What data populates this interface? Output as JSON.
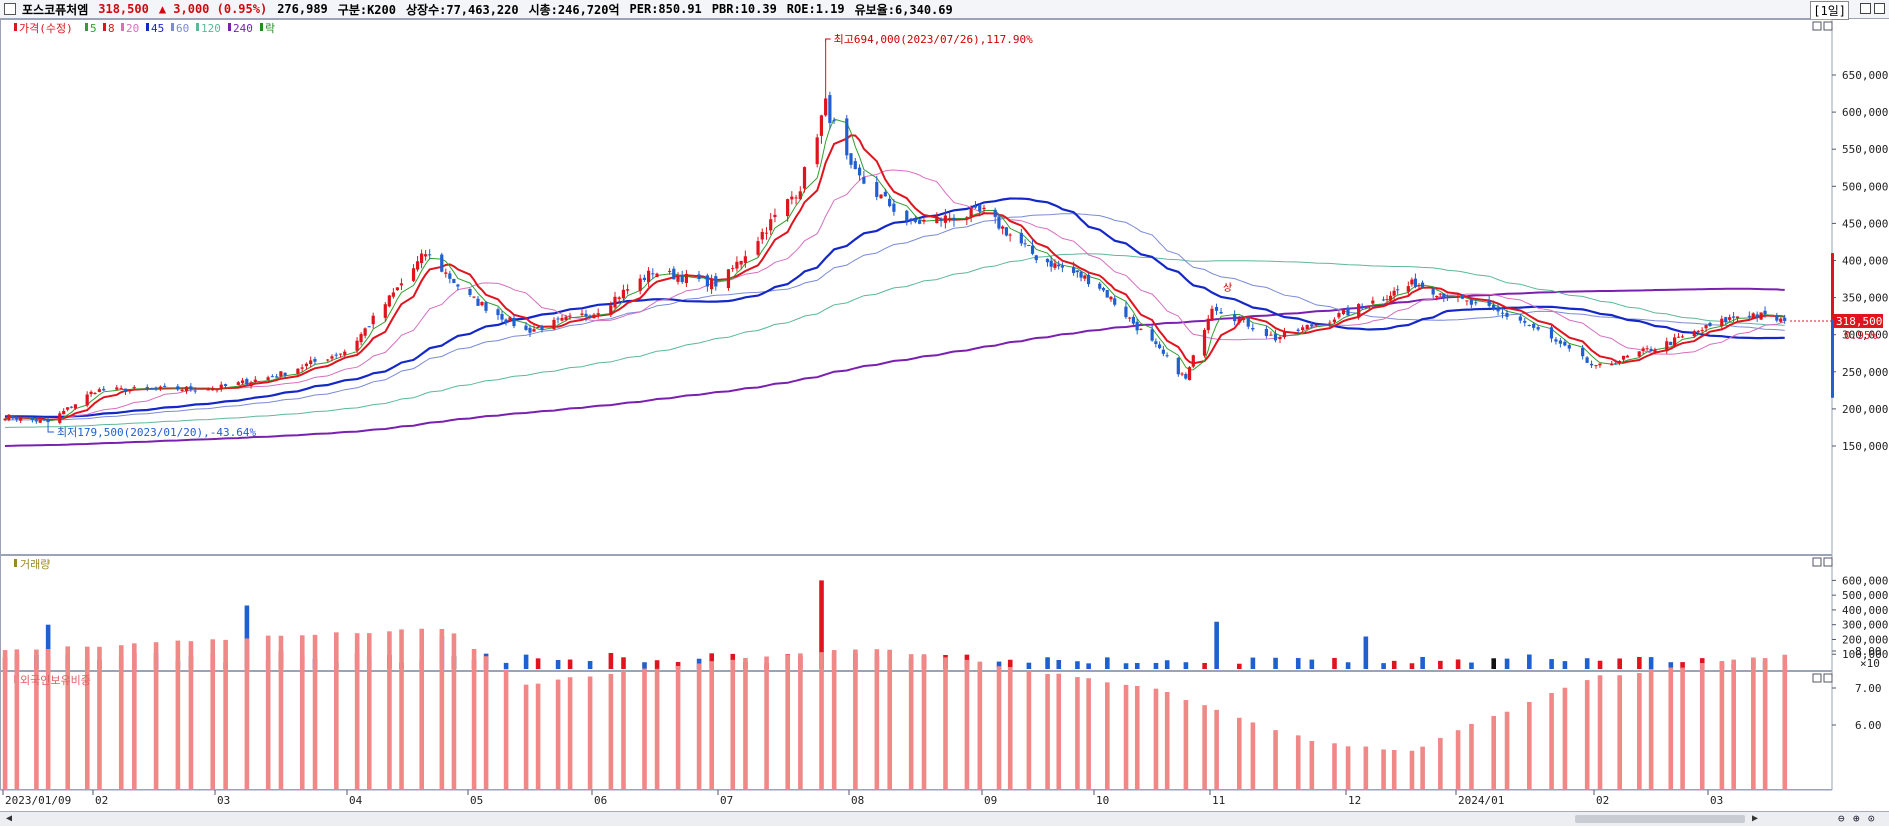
{
  "header": {
    "stock_name": "포스코퓨처엠",
    "price": "318,500",
    "change": "▲ 3,000 (0.95%)",
    "volume": "276,989",
    "market": "구분:K200",
    "shares": "상장수:77,463,220",
    "market_cap": "시총:246,720억",
    "per": "PER:850.91",
    "pbr": "PBR:10.39",
    "roe": "ROE:1.19",
    "float_rate": "유보율:6,340.69",
    "period": "[1일]"
  },
  "colors": {
    "up": "#e0141e",
    "down": "#1f5fcf",
    "ma5": "#2ea02e",
    "ma8": "#e0141e",
    "ma20": "#d76fbf",
    "ma45": "#1428c8",
    "ma60": "#7a8ad8",
    "ma120": "#5bb89a",
    "ma240": "#7a20b0",
    "foreign": "#f08888"
  },
  "price_panel": {
    "legend": [
      "가격(수정)",
      "5",
      "8",
      "20",
      "45",
      "60",
      "120",
      "240",
      "락"
    ],
    "high_annotation": "최고694,000(2023/07/26),117.90%",
    "low_annotation": "최저179,500(2023/01/20),-43.64%",
    "last_price_label": "318,500",
    "last_change_label": "0.95%",
    "y_ticks": [
      "650,000",
      "600,000",
      "550,000",
      "500,000",
      "450,000",
      "400,000",
      "350,000",
      "300,000",
      "250,000",
      "200,000",
      "150,000"
    ],
    "sang_mark": "상"
  },
  "volume_panel": {
    "title": "거래량",
    "y_ticks": [
      "600,000",
      "500,000",
      "400,000",
      "300,000",
      "200,000",
      "100,000"
    ],
    "unit": "×10"
  },
  "foreign_panel": {
    "title": "외국인보유비중",
    "y_ticks": [
      "8.00",
      "7.00",
      "6.00"
    ]
  },
  "x_axis": {
    "labels": [
      "2023/01/09",
      "02",
      "03",
      "04",
      "05",
      "06",
      "07",
      "08",
      "09",
      "10",
      "11",
      "12",
      "2024/01",
      "02",
      "03"
    ]
  },
  "chart_data": {
    "type": "candlestick",
    "title": "포스코퓨처엠",
    "x_label_dates": [
      "2023/01/09",
      "2023/02",
      "2023/03",
      "2023/04",
      "2023/05",
      "2023/06",
      "2023/07",
      "2023/08",
      "2023/09",
      "2023/10",
      "2023/11",
      "2023/12",
      "2024/01",
      "2024/02",
      "2024/03"
    ],
    "price_close_keypoints": [
      {
        "date": "2023/01/09",
        "close": 190000
      },
      {
        "date": "2023/01/20",
        "close": 182000
      },
      {
        "date": "2023/02/01",
        "close": 225000
      },
      {
        "date": "2023/03/01",
        "close": 228000
      },
      {
        "date": "2023/03/15",
        "close": 245000
      },
      {
        "date": "2023/04/01",
        "close": 280000
      },
      {
        "date": "2023/04/20",
        "close": 410000
      },
      {
        "date": "2023/05/01",
        "close": 350000
      },
      {
        "date": "2023/05/15",
        "close": 305000
      },
      {
        "date": "2023/06/01",
        "close": 330000
      },
      {
        "date": "2023/06/15",
        "close": 385000
      },
      {
        "date": "2023/07/01",
        "close": 368000
      },
      {
        "date": "2023/07/20",
        "close": 500000
      },
      {
        "date": "2023/07/26",
        "close": 610000
      },
      {
        "date": "2023/08/01",
        "close": 520000
      },
      {
        "date": "2023/08/15",
        "close": 450000
      },
      {
        "date": "2023/09/01",
        "close": 465000
      },
      {
        "date": "2023/09/15",
        "close": 405000
      },
      {
        "date": "2023/10/01",
        "close": 370000
      },
      {
        "date": "2023/10/25",
        "close": 240000
      },
      {
        "date": "2023/11/01",
        "close": 340000
      },
      {
        "date": "2023/11/15",
        "close": 295000
      },
      {
        "date": "2023/12/01",
        "close": 330000
      },
      {
        "date": "2023/12/20",
        "close": 370000
      },
      {
        "date": "2024/01/15",
        "close": 320000
      },
      {
        "date": "2024/02/01",
        "close": 255000
      },
      {
        "date": "2024/02/20",
        "close": 290000
      },
      {
        "date": "2024/03/10",
        "close": 330000
      },
      {
        "date": "2024/03/20",
        "close": 318500
      }
    ],
    "high": {
      "date": "2023/07/26",
      "value": 694000
    },
    "low": {
      "date": "2023/01/20",
      "value": 179500
    },
    "last_close": 318500,
    "change_pct": 0.95,
    "volume_keypoints": [
      {
        "date": "2023/01/20",
        "value": 300000
      },
      {
        "date": "2023/03/08",
        "value": 430000
      },
      {
        "date": "2023/07/26",
        "value": 600000
      },
      {
        "date": "2023/11/01",
        "value": 320000
      },
      {
        "date": "2023/12/05",
        "value": 220000
      }
    ],
    "foreign_holding_keypoints": [
      {
        "date": "2023/01/09",
        "value": 8.0
      },
      {
        "date": "2023/03/15",
        "value": 8.4
      },
      {
        "date": "2023/04/25",
        "value": 8.6
      },
      {
        "date": "2023/05/15",
        "value": 7.1
      },
      {
        "date": "2023/06/20",
        "value": 7.6
      },
      {
        "date": "2023/08/05",
        "value": 8.1
      },
      {
        "date": "2023/10/20",
        "value": 6.9
      },
      {
        "date": "2023/11/25",
        "value": 5.5
      },
      {
        "date": "2023/12/20",
        "value": 5.3
      },
      {
        "date": "2024/02/01",
        "value": 7.3
      },
      {
        "date": "2024/03/20",
        "value": 7.9
      }
    ],
    "ylim_price": [
      130000,
      720000
    ],
    "ylim_foreign": [
      5.0,
      8.7
    ],
    "ma_240_end": 350000,
    "ma_45_end": 292000
  }
}
